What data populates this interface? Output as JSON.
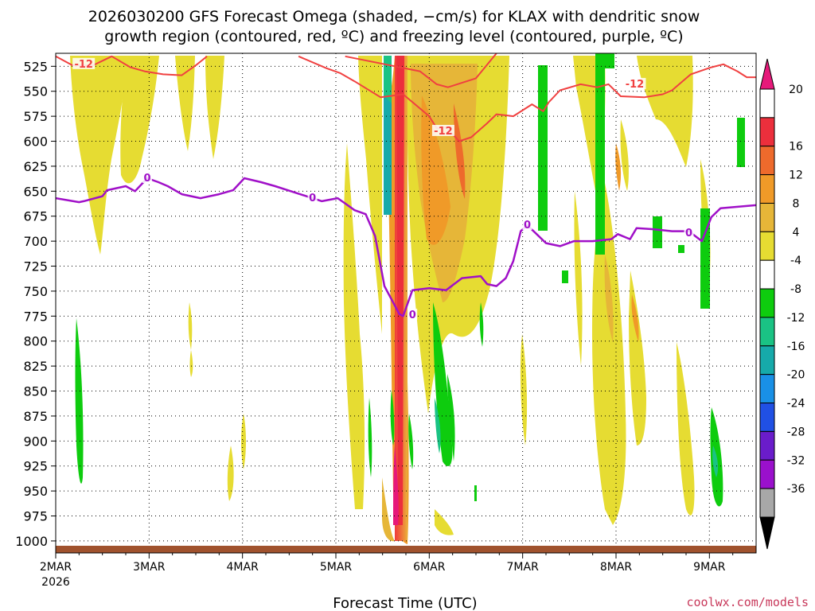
{
  "chart_data": {
    "type": "heatmap",
    "title_line1": "2026030200 GFS Forecast Omega (shaded, −cm/s) for KLAX with dendritic snow",
    "title_line2": "growth region (contoured, red, ºC) and freezing level (contoured, purple, ºC)",
    "xlabel": "Forecast Time (UTC)",
    "credit": "coolwx.com/models",
    "x_range_days": [
      0,
      7.5
    ],
    "x_ticks": [
      {
        "day": 0,
        "label": "2MAR",
        "sub": "2026"
      },
      {
        "day": 1,
        "label": "3MAR",
        "sub": ""
      },
      {
        "day": 2,
        "label": "4MAR",
        "sub": ""
      },
      {
        "day": 3,
        "label": "5MAR",
        "sub": ""
      },
      {
        "day": 4,
        "label": "6MAR",
        "sub": ""
      },
      {
        "day": 5,
        "label": "7MAR",
        "sub": ""
      },
      {
        "day": 6,
        "label": "8MAR",
        "sub": ""
      },
      {
        "day": 7,
        "label": "9MAR",
        "sub": ""
      }
    ],
    "y_range_hpa": [
      512,
      1012
    ],
    "y_ticks": [
      "525",
      "550",
      "575",
      "600",
      "625",
      "650",
      "675",
      "700",
      "725",
      "750",
      "775",
      "800",
      "825",
      "850",
      "875",
      "900",
      "925",
      "950",
      "975",
      "1000"
    ],
    "colorbar": {
      "labels": [
        "20",
        "16",
        "12",
        "8",
        "4",
        "-4",
        "-8",
        "-12",
        "-16",
        "-20",
        "-24",
        "-28",
        "-32",
        "-36"
      ],
      "colors": [
        "#ffffff",
        "#ec2f3c",
        "#ee6a2c",
        "#f09a28",
        "#e6b638",
        "#e6dc32",
        "#ffffff",
        "#0ecc0e",
        "#1ac384",
        "#16aaaa",
        "#1990e6",
        "#2050e4",
        "#6a1ccb",
        "#9a10cc",
        "#a8a8a8"
      ],
      "top_color": "#e6197a",
      "bottom_color": "#000000"
    },
    "freezing_level": {
      "label": "0",
      "color": "#a010c8",
      "points": [
        [
          0,
          657
        ],
        [
          0.25,
          661
        ],
        [
          0.3,
          660
        ],
        [
          0.5,
          655
        ],
        [
          0.55,
          649
        ],
        [
          0.75,
          645
        ],
        [
          0.85,
          650
        ],
        [
          0.98,
          637
        ],
        [
          1.1,
          641
        ],
        [
          1.2,
          645
        ],
        [
          1.35,
          653
        ],
        [
          1.55,
          657
        ],
        [
          1.75,
          653
        ],
        [
          1.9,
          649
        ],
        [
          2.02,
          637
        ],
        [
          2.2,
          641
        ],
        [
          2.35,
          645
        ],
        [
          2.55,
          651
        ],
        [
          2.75,
          657
        ],
        [
          2.85,
          660
        ],
        [
          3.02,
          657
        ],
        [
          3.08,
          661
        ],
        [
          3.2,
          669
        ],
        [
          3.32,
          673
        ],
        [
          3.42,
          695
        ],
        [
          3.52,
          745
        ],
        [
          3.68,
          773
        ],
        [
          3.72,
          775
        ],
        [
          3.82,
          749
        ],
        [
          4.0,
          747
        ],
        [
          4.18,
          749
        ],
        [
          4.35,
          737
        ],
        [
          4.55,
          735
        ],
        [
          4.62,
          743
        ],
        [
          4.72,
          745
        ],
        [
          4.82,
          737
        ],
        [
          4.9,
          720
        ],
        [
          4.98,
          690
        ],
        [
          5.05,
          684
        ],
        [
          5.15,
          693
        ],
        [
          5.25,
          702
        ],
        [
          5.4,
          705
        ],
        [
          5.55,
          700
        ],
        [
          5.75,
          700
        ],
        [
          5.95,
          698
        ],
        [
          6.02,
          693
        ],
        [
          6.15,
          698
        ],
        [
          6.22,
          687
        ],
        [
          6.4,
          688
        ],
        [
          6.6,
          690
        ],
        [
          6.78,
          690
        ],
        [
          6.92,
          700
        ],
        [
          7.02,
          676
        ],
        [
          7.12,
          667
        ],
        [
          7.5,
          664
        ]
      ],
      "labels_at": [
        [
          0.98,
          637
        ],
        [
          2.75,
          657
        ],
        [
          3.82,
          774
        ],
        [
          5.05,
          684
        ],
        [
          6.78,
          692
        ]
      ]
    },
    "dgz_contours": {
      "label": "-12",
      "color": "#f04040",
      "upper": [
        [
          0,
          515
        ],
        [
          0.18,
          524
        ],
        [
          0.4,
          524
        ],
        [
          0.6,
          515
        ],
        [
          0.8,
          526
        ],
        [
          0.95,
          530
        ],
        [
          1.15,
          533
        ],
        [
          1.35,
          534
        ],
        [
          1.5,
          524
        ],
        [
          1.62,
          515
        ]
      ],
      "lower": [
        [
          3.1,
          515
        ],
        [
          3.9,
          530
        ],
        [
          4.08,
          543
        ],
        [
          4.2,
          546
        ],
        [
          4.5,
          537
        ],
        [
          4.72,
          512
        ]
      ],
      "mid": [
        [
          2.6,
          515
        ],
        [
          2.9,
          527
        ],
        [
          3.05,
          532
        ],
        [
          3.2,
          540
        ],
        [
          3.48,
          556
        ],
        [
          3.72,
          553
        ],
        [
          4.0,
          575
        ],
        [
          4.08,
          587
        ],
        [
          4.18,
          586
        ],
        [
          4.25,
          593
        ],
        [
          4.32,
          600
        ],
        [
          4.45,
          596
        ],
        [
          4.62,
          582
        ],
        [
          4.72,
          573
        ],
        [
          4.9,
          575
        ],
        [
          5.1,
          563
        ],
        [
          5.22,
          570
        ],
        [
          5.28,
          561
        ],
        [
          5.4,
          549
        ],
        [
          5.62,
          543
        ],
        [
          5.8,
          546
        ],
        [
          5.92,
          543
        ],
        [
          6.05,
          555
        ],
        [
          6.3,
          556
        ],
        [
          6.5,
          553
        ],
        [
          6.6,
          549
        ],
        [
          6.8,
          533
        ],
        [
          7.02,
          526
        ],
        [
          7.15,
          523
        ],
        [
          7.3,
          530
        ],
        [
          7.4,
          536
        ],
        [
          7.5,
          536
        ]
      ],
      "labels_at": [
        [
          0.3,
          523
        ],
        [
          4.15,
          590
        ],
        [
          6.2,
          543
        ]
      ]
    },
    "ground_color": "#a0522d"
  }
}
